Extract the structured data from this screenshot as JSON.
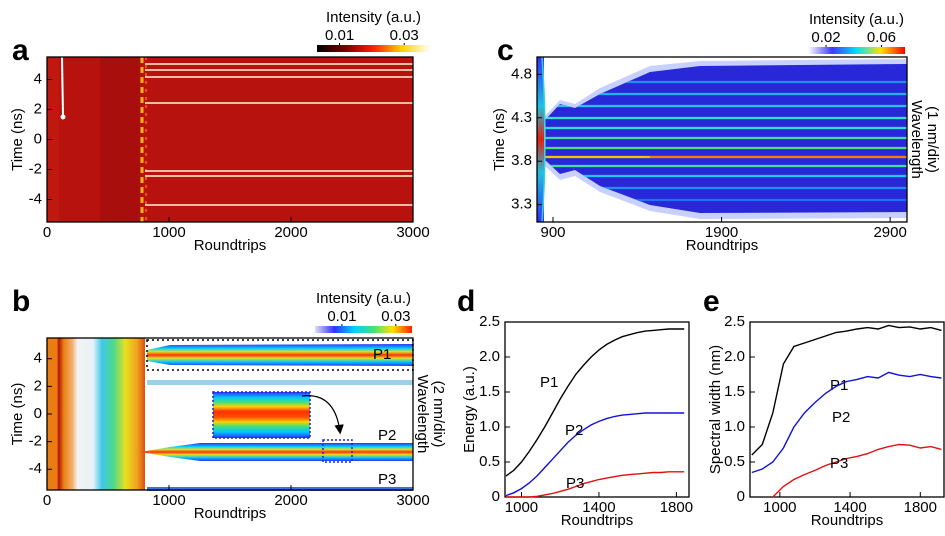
{
  "chart_data": [
    {
      "type": "heatmap",
      "panel": "a",
      "xlabel": "Roundtrips",
      "ylabel": "Time (ns)",
      "xlim": [
        0,
        3000
      ],
      "xticks": [
        0,
        1000,
        2000,
        3000
      ],
      "ylim": [
        -5.5,
        5.5
      ],
      "yticks": [
        -4,
        -2,
        0,
        2,
        4
      ],
      "colorbar": {
        "label": "Intensity (a.u.)",
        "clim": [
          0.003,
          0.038
        ],
        "ticks": [
          0.01,
          0.03
        ],
        "colors": [
          "#000000",
          "#7a0000",
          "#ff2000",
          "#ffd000",
          "#ffffff"
        ]
      }
    },
    {
      "type": "heatmap",
      "panel": "b",
      "xlabel": "Roundtrips",
      "ylabel": "Time (ns)",
      "xlim": [
        0,
        3000
      ],
      "xticks": [
        0,
        1000,
        2000,
        3000
      ],
      "ylim": [
        -5.5,
        5.5
      ],
      "yticks": [
        -4,
        -2,
        0,
        2,
        4
      ],
      "colorbar": {
        "label": "Intensity (a.u.)",
        "clim": [
          0,
          0.036
        ],
        "ticks": [
          0.01,
          0.03
        ],
        "colors": [
          "#e0e0f0",
          "#3030ff",
          "#00d0ff",
          "#40e080",
          "#ffe000",
          "#ff2000"
        ]
      },
      "right_label": [
        "Wavelength",
        "(2 nm/div)"
      ],
      "annotations": [
        {
          "text": "P1",
          "color": "#000000"
        },
        {
          "text": "P2",
          "color": "#1010e0"
        },
        {
          "text": "P3",
          "color": "#e01010"
        }
      ]
    },
    {
      "type": "heatmap",
      "panel": "c",
      "xlabel": "Roundtrips",
      "ylabel": "Time (ns)",
      "xlim": [
        805,
        3000
      ],
      "xticks": [
        900,
        1900,
        2900
      ],
      "ylim": [
        3.1,
        5.0
      ],
      "yticks": [
        3.3,
        3.8,
        4.3,
        4.8
      ],
      "colorbar": {
        "label": "Intensity (a.u.)",
        "clim": [
          0.007,
          0.077
        ],
        "ticks": [
          0.02,
          0.06
        ],
        "colors": [
          "#ffffff",
          "#3a3aff",
          "#00e0ff",
          "#ffe000",
          "#ff0000"
        ]
      },
      "right_label": [
        "Wavelength",
        "(1 nm/div)"
      ]
    },
    {
      "type": "line",
      "panel": "d",
      "xlabel": "Roundtrips",
      "ylabel": "Energy (a.u.)",
      "xlim": [
        915,
        1865
      ],
      "xticks": [
        1000,
        1400,
        1800
      ],
      "ylim": [
        0,
        2.5
      ],
      "yticks": [
        0,
        0.5,
        {
          "value": 1,
          "label": "1.0"
        },
        1.5,
        {
          "value": 2,
          "label": "2.0"
        },
        2.5
      ],
      "x": [
        920,
        960,
        1000,
        1040,
        1080,
        1120,
        1160,
        1200,
        1240,
        1280,
        1320,
        1360,
        1400,
        1440,
        1480,
        1520,
        1560,
        1600,
        1640,
        1680,
        1720,
        1760,
        1800,
        1840
      ],
      "series": [
        {
          "name": "P1",
          "color": "#000000",
          "values": [
            0.3,
            0.38,
            0.5,
            0.65,
            0.82,
            1.0,
            1.2,
            1.4,
            1.58,
            1.75,
            1.88,
            2.0,
            2.1,
            2.18,
            2.24,
            2.29,
            2.32,
            2.35,
            2.37,
            2.38,
            2.39,
            2.4,
            2.4,
            2.4
          ]
        },
        {
          "name": "P2",
          "color": "#1010e0",
          "values": [
            0.02,
            0.06,
            0.12,
            0.2,
            0.3,
            0.42,
            0.54,
            0.66,
            0.78,
            0.88,
            0.96,
            1.03,
            1.08,
            1.12,
            1.15,
            1.17,
            1.18,
            1.19,
            1.2,
            1.2,
            1.2,
            1.2,
            1.2,
            1.2
          ]
        },
        {
          "name": "P3",
          "color": "#e01010",
          "values": [
            0,
            0,
            0,
            0,
            0.01,
            0.03,
            0.05,
            0.08,
            0.11,
            0.15,
            0.19,
            0.22,
            0.25,
            0.27,
            0.29,
            0.31,
            0.32,
            0.33,
            0.34,
            0.35,
            0.35,
            0.36,
            0.36,
            0.36
          ]
        }
      ]
    },
    {
      "type": "line",
      "panel": "e",
      "xlabel": "Roundtrips",
      "ylabel": "Spectral width (nm)",
      "xlim": [
        830,
        1935
      ],
      "xticks": [
        1000,
        1400,
        1800
      ],
      "ylim": [
        0,
        2.5
      ],
      "yticks": [
        0,
        0.5,
        {
          "value": 1,
          "label": "1.0"
        },
        1.5,
        {
          "value": 2,
          "label": "2.0"
        },
        2.5
      ],
      "x": [
        840,
        900,
        960,
        1020,
        1080,
        1140,
        1200,
        1260,
        1320,
        1380,
        1440,
        1500,
        1560,
        1620,
        1680,
        1740,
        1800,
        1860,
        1920
      ],
      "series": [
        {
          "name": "P1",
          "color": "#000000",
          "values": [
            0.6,
            0.75,
            1.2,
            1.9,
            2.15,
            2.2,
            2.25,
            2.3,
            2.35,
            2.37,
            2.4,
            2.42,
            2.4,
            2.45,
            2.42,
            2.43,
            2.4,
            2.42,
            2.38
          ]
        },
        {
          "name": "P2",
          "color": "#1010e0",
          "values": [
            0.35,
            0.4,
            0.5,
            0.7,
            1.0,
            1.2,
            1.35,
            1.48,
            1.58,
            1.65,
            1.68,
            1.72,
            1.7,
            1.78,
            1.74,
            1.72,
            1.75,
            1.72,
            1.7
          ]
        },
        {
          "name": "P3",
          "color": "#e01010",
          "values": [
            null,
            null,
            0,
            0.15,
            0.25,
            0.32,
            0.38,
            0.45,
            0.5,
            0.55,
            0.58,
            0.62,
            0.68,
            0.72,
            0.75,
            0.74,
            0.7,
            0.72,
            0.68
          ]
        }
      ]
    }
  ]
}
